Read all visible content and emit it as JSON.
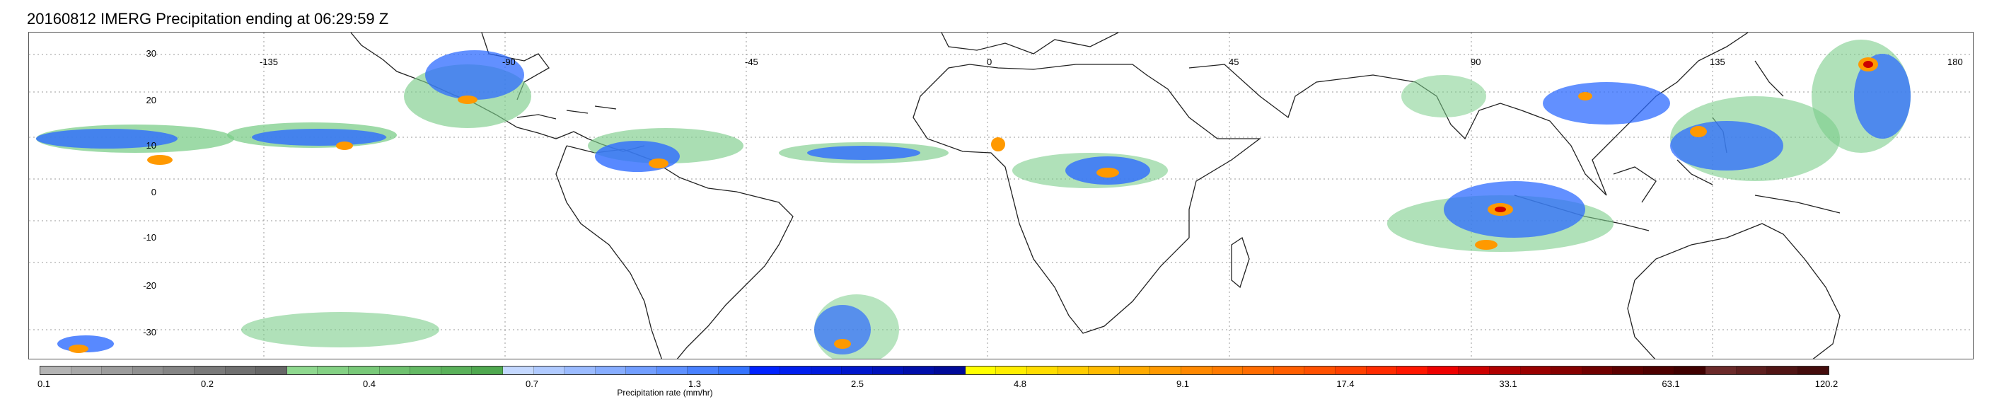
{
  "title": "20160812 IMERG Precipitation ending at 06:29:59 Z",
  "lat_labels": [
    "30",
    "20",
    "10",
    "0",
    "-10",
    "-20",
    "-30"
  ],
  "lon_labels": [
    "-135",
    "-90",
    "-45",
    "0",
    "45",
    "90",
    "135",
    "180"
  ],
  "colorbar": {
    "title": "Precipitation rate (mm/hr)",
    "tick_labels": [
      "0.1",
      "0.2",
      "0.4",
      "0.7",
      "1.3",
      "2.5",
      "4.8",
      "9.1",
      "17.4",
      "33.1",
      "63.1",
      "120.2"
    ],
    "colors": [
      "#b4b4b4",
      "#a8a8a8",
      "#9c9c9c",
      "#909090",
      "#858585",
      "#7a7a7a",
      "#707070",
      "#666666",
      "#8fd88f",
      "#84d184",
      "#79c979",
      "#6fc16f",
      "#64b964",
      "#5ab15a",
      "#4fa84f",
      "#c4d8ff",
      "#b0caff",
      "#9bbbff",
      "#87adff",
      "#729eff",
      "#5e90ff",
      "#4981ff",
      "#3573ff",
      "#0022ff",
      "#001eee",
      "#001add",
      "#0016cc",
      "#0012bb",
      "#000eaa",
      "#000a99",
      "#ffff00",
      "#ffee00",
      "#ffdd00",
      "#ffcc00",
      "#ffbb00",
      "#ffaa00",
      "#ff9900",
      "#ff8800",
      "#ff7a00",
      "#ff6c00",
      "#ff5e00",
      "#ff5000",
      "#ff4000",
      "#ff2b00",
      "#ff1600",
      "#ee0000",
      "#cc0000",
      "#b00000",
      "#990000",
      "#850000",
      "#700000",
      "#5c0000",
      "#4e0000",
      "#400000",
      "#6b2a2a",
      "#5e1f1f",
      "#511515",
      "#440c0c"
    ]
  },
  "colors": {
    "grid": "#9a9a9a",
    "coast": "#222222",
    "light_rain": "#7ccd8a",
    "moderate_rain": "#2e6bff",
    "heavy_rain": "#0016cc",
    "intense_rain": "#ff9900",
    "extreme_rain": "#cc0000"
  }
}
